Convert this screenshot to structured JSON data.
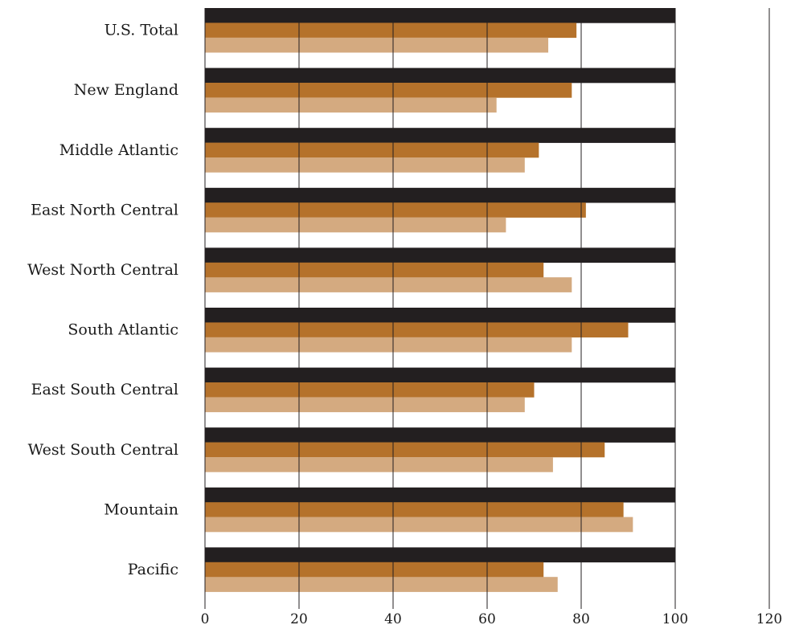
{
  "chart_data": {
    "type": "bar",
    "orientation": "horizontal",
    "categories": [
      "U.S. Total",
      "New England",
      "Middle Atlantic",
      "East North Central",
      "West North Central",
      "South Atlantic",
      "East South Central",
      "West South Central",
      "Mountain",
      "Pacific"
    ],
    "series": [
      {
        "color": "#231f20",
        "values": [
          100,
          100,
          100,
          100,
          100,
          100,
          100,
          100,
          100,
          100
        ]
      },
      {
        "color": "#b5722b",
        "values": [
          79,
          78,
          71,
          81,
          72,
          90,
          70,
          85,
          89,
          72
        ]
      },
      {
        "color": "#d4aa80",
        "values": [
          73,
          62,
          68,
          64,
          78,
          78,
          68,
          74,
          91,
          75
        ]
      }
    ],
    "xlim": [
      0,
      120
    ],
    "xticks": [
      "0",
      "20",
      "40",
      "60",
      "80",
      "100",
      "120"
    ],
    "grid": true,
    "title": "",
    "xlabel": "",
    "ylabel": ""
  }
}
